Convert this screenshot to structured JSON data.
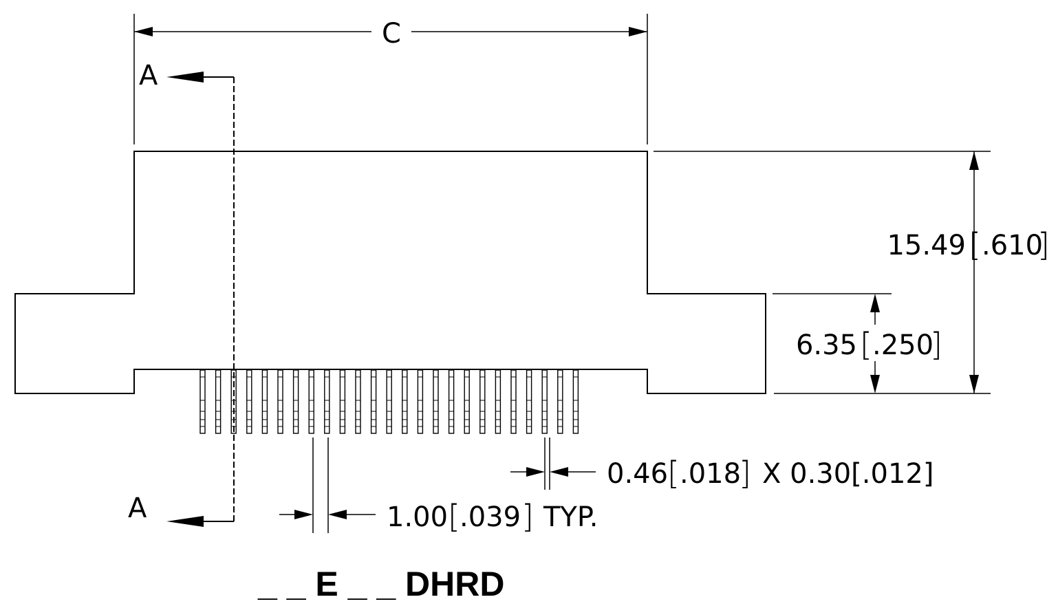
{
  "dimensions": {
    "width_label": "C",
    "section_top": "A",
    "section_bottom": "A",
    "height_total": {
      "mm": "15.49",
      "in": ".610"
    },
    "height_lower": {
      "mm": "6.35",
      "in": ".250"
    },
    "pin_size": {
      "mm": "0.46",
      "in": ".018",
      "suffix": "X 0.30[.012]"
    },
    "pitch": {
      "mm": "1.00",
      "in": ".039",
      "suffix": "TYP."
    }
  },
  "part_number": "_ _ E _ _ DHRD",
  "pin_count": 25
}
